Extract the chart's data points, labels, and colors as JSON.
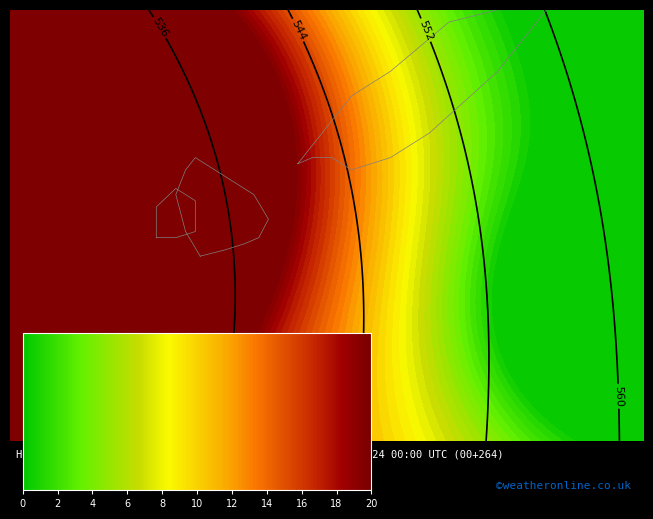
{
  "title": "Height 500 hPa Spread mean+σ [gpdm]  GFS ENS  Fr 04-10-2024 00:00 UTC (00+264)",
  "colorbar_label": "",
  "colorbar_ticks": [
    0,
    2,
    4,
    6,
    8,
    10,
    12,
    14,
    16,
    18,
    20
  ],
  "vmin": 0,
  "vmax": 20,
  "colormap_colors": [
    "#00c800",
    "#32dc00",
    "#64f000",
    "#96e600",
    "#c8dc00",
    "#fafa00",
    "#fad200",
    "#faaa00",
    "#fa7800",
    "#e15000",
    "#c82800",
    "#a00000",
    "#780000"
  ],
  "background_color": "#000000",
  "map_background": "#c8c8c8",
  "contour_color": "#000000",
  "contour_label_color": "#000000",
  "credit_text": "©weatheronline.co.uk",
  "credit_color": "#0064c8",
  "lon_min": -25,
  "lon_max": 40,
  "lat_min": 35,
  "lat_max": 70
}
